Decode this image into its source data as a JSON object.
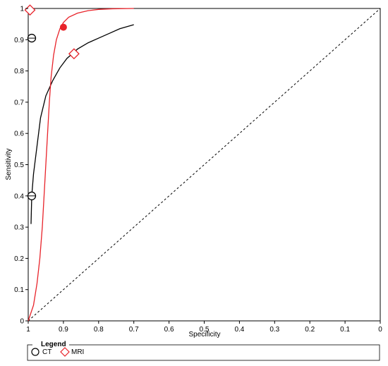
{
  "chart_data": {
    "type": "line",
    "title": "",
    "xlabel": "Specificity",
    "ylabel": "Sensitivity",
    "xlim": [
      1,
      0
    ],
    "ylim": [
      0,
      1
    ],
    "x_reversed": true,
    "grid": false,
    "x_ticks": [
      "1",
      "0.9",
      "0.8",
      "0.7",
      "0.6",
      "0.5",
      "0.4",
      "0.3",
      "0.2",
      "0.1",
      "0"
    ],
    "y_ticks": [
      "0",
      "0.1",
      "0.2",
      "0.3",
      "0.4",
      "0.5",
      "0.6",
      "0.7",
      "0.8",
      "0.9",
      "1"
    ],
    "legend": {
      "title": "Legend",
      "placement": "bottom-left",
      "entries": [
        {
          "label": "CT",
          "marker": "circle",
          "color": "#000000"
        },
        {
          "label": "MRI",
          "marker": "diamond",
          "color": "#e8232a"
        }
      ]
    },
    "reference_line": {
      "style": "dashed",
      "color": "#000000",
      "points": [
        [
          1,
          0
        ],
        [
          0,
          1
        ]
      ]
    },
    "series": [
      {
        "name": "CT",
        "color": "#000000",
        "marker": "circle",
        "curve": [
          [
            0.992,
            0.31
          ],
          [
            0.99,
            0.4
          ],
          [
            0.985,
            0.47
          ],
          [
            0.975,
            0.56
          ],
          [
            0.965,
            0.65
          ],
          [
            0.95,
            0.72
          ],
          [
            0.93,
            0.77
          ],
          [
            0.91,
            0.81
          ],
          [
            0.89,
            0.84
          ],
          [
            0.86,
            0.87
          ],
          [
            0.83,
            0.89
          ],
          [
            0.8,
            0.905
          ],
          [
            0.77,
            0.92
          ],
          [
            0.74,
            0.935
          ],
          [
            0.7,
            0.948
          ]
        ],
        "studies": [
          [
            0.99,
            0.905
          ],
          [
            0.99,
            0.4
          ]
        ],
        "summary_point": null
      },
      {
        "name": "MRI",
        "color": "#e8232a",
        "marker": "diamond",
        "curve": [
          [
            1.0,
            0.0
          ],
          [
            0.985,
            0.05
          ],
          [
            0.975,
            0.12
          ],
          [
            0.967,
            0.2
          ],
          [
            0.96,
            0.3
          ],
          [
            0.955,
            0.4
          ],
          [
            0.95,
            0.5
          ],
          [
            0.945,
            0.6
          ],
          [
            0.94,
            0.7
          ],
          [
            0.935,
            0.78
          ],
          [
            0.928,
            0.85
          ],
          [
            0.92,
            0.9
          ],
          [
            0.91,
            0.935
          ],
          [
            0.9,
            0.955
          ],
          [
            0.885,
            0.972
          ],
          [
            0.86,
            0.985
          ],
          [
            0.83,
            0.993
          ],
          [
            0.8,
            0.997
          ],
          [
            0.76,
            0.999
          ],
          [
            0.7,
            1.0
          ]
        ],
        "studies": [
          [
            0.995,
            0.995
          ],
          [
            0.87,
            0.855
          ]
        ],
        "summary_point": [
          0.9,
          0.94
        ]
      }
    ]
  }
}
